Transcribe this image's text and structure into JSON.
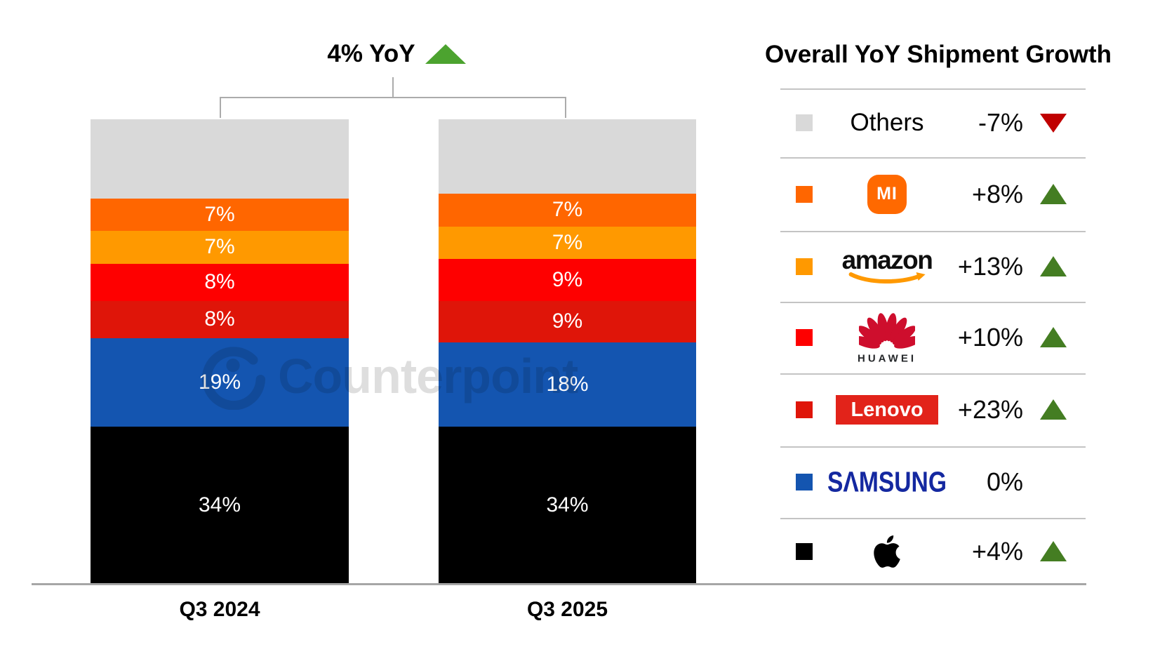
{
  "title": {
    "text": "4% YoY",
    "direction": "up",
    "arrow_color": "#4CA32F"
  },
  "watermark": {
    "text": "Counterpoint"
  },
  "axis": {
    "categories": [
      "Q3 2024",
      "Q3 2025"
    ]
  },
  "legend": {
    "title": "Overall YoY Shipment Growth",
    "rows": [
      {
        "brand": "Others",
        "display": "text",
        "swatch": "#D9D9D9",
        "value": "-7%",
        "direction": "down"
      },
      {
        "brand": "Xiaomi",
        "display": "mi-logo",
        "swatch": "#FF6600",
        "value": "+8%",
        "direction": "up"
      },
      {
        "brand": "Amazon",
        "display": "amazon-logo",
        "swatch": "#FF9900",
        "value": "+13%",
        "direction": "up"
      },
      {
        "brand": "Huawei",
        "display": "huawei-logo",
        "swatch": "#FE0000",
        "value": "+10%",
        "direction": "up"
      },
      {
        "brand": "Lenovo",
        "display": "lenovo-logo",
        "swatch": "#DF1509",
        "value": "+23%",
        "direction": "up"
      },
      {
        "brand": "Samsung",
        "display": "samsung-logo",
        "swatch": "#1455B0",
        "value": "0%",
        "direction": "flat"
      },
      {
        "brand": "Apple",
        "display": "apple-logo",
        "swatch": "#000000",
        "value": "+4%",
        "direction": "up"
      }
    ]
  },
  "logos": {
    "mi_text": "MI",
    "amazon_text": "amazon",
    "huawei_text": "HUAWEI",
    "lenovo_text": "Lenovo",
    "samsung_text": "SΛMSUNG"
  },
  "chart_data": {
    "type": "bar",
    "subtype": "stacked-100-percent",
    "title": "4% YoY",
    "categories": [
      "Q3 2024",
      "Q3 2025"
    ],
    "series": [
      {
        "name": "Others",
        "color": "#D9D9D9",
        "values": [
          17,
          16
        ],
        "data_labels": false
      },
      {
        "name": "Xiaomi",
        "color": "#FF6600",
        "values": [
          7,
          7
        ],
        "data_labels": true
      },
      {
        "name": "Amazon",
        "color": "#FF9900",
        "values": [
          7,
          7
        ],
        "data_labels": true
      },
      {
        "name": "Huawei",
        "color": "#FE0000",
        "values": [
          8,
          9
        ],
        "data_labels": true
      },
      {
        "name": "Lenovo",
        "color": "#DF1509",
        "values": [
          8,
          9
        ],
        "data_labels": true
      },
      {
        "name": "Samsung",
        "color": "#1455B0",
        "values": [
          19,
          18
        ],
        "data_labels": true
      },
      {
        "name": "Apple",
        "color": "#000000",
        "values": [
          34,
          34
        ],
        "data_labels": true
      }
    ],
    "ylim": [
      0,
      100
    ],
    "unit": "%",
    "legend_position": "right",
    "grid": false,
    "annotations": [
      {
        "text": "4% YoY",
        "type": "bracket-over-both-bars",
        "direction": "up"
      }
    ],
    "legend_growth": {
      "title": "Overall YoY Shipment Growth",
      "Others": "-7%",
      "Xiaomi": "+8%",
      "Amazon": "+13%",
      "Huawei": "+10%",
      "Lenovo": "+23%",
      "Samsung": "0%",
      "Apple": "+4%"
    }
  },
  "colors": {
    "up_green_legend": "#447D22",
    "up_green_title": "#4CA32F",
    "down_red": "#C00000",
    "samsung_blue": "#1428A0",
    "mi_orange": "#FF6900",
    "lenovo_red": "#E2231A",
    "huawei_crimson": "#CE0E2D",
    "amazon_smile": "#FF9900",
    "axis_gray": "#A6A6A6",
    "others_gray": "#D9D9D9"
  }
}
